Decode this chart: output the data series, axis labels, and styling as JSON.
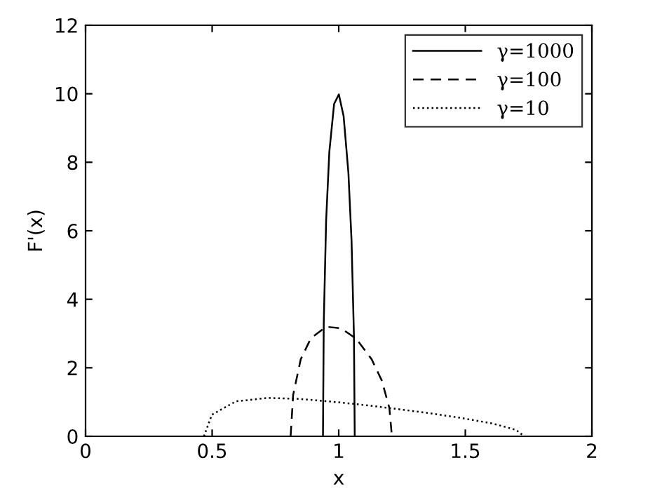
{
  "chart_data": {
    "type": "line",
    "xlabel": "x",
    "ylabel": "F'(x)",
    "xlim": [
      0,
      2
    ],
    "ylim": [
      0,
      12
    ],
    "xticks": [
      0,
      0.5,
      1,
      1.5,
      2
    ],
    "yticks": [
      0,
      2,
      4,
      6,
      8,
      10,
      12
    ],
    "grid": false,
    "legend": "top right",
    "marker": "none",
    "series": [
      {
        "name": "γ=1000",
        "color": "#000000",
        "line_style": "solid",
        "x": [
          0.9378,
          0.9409,
          0.9503,
          0.9629,
          0.9817,
          1.0005,
          1.0193,
          1.0382,
          1.0507,
          1.0601,
          1.0633
        ],
        "values": [
          0,
          3.31,
          6.31,
          8.3,
          9.7,
          9.98,
          9.35,
          7.7,
          5.7,
          2.94,
          0
        ]
      },
      {
        "name": "γ=100",
        "color": "#000000",
        "line_style": "dashed",
        "x": [
          0.81,
          0.82,
          0.85,
          0.89,
          0.95,
          1.01,
          1.07,
          1.13,
          1.17,
          1.2,
          1.21
        ],
        "values": [
          0,
          1.21,
          2.25,
          2.86,
          3.2,
          3.15,
          2.84,
          2.25,
          1.63,
          0.83,
          0
        ]
      },
      {
        "name": "γ=10",
        "color": "#000000",
        "line_style": "dotted",
        "x": [
          0.4675,
          0.4991,
          0.594,
          0.7205,
          0.847,
          0.9735,
          1.1,
          1.2265,
          1.353,
          1.4795,
          1.606,
          1.7009,
          1.7325
        ],
        "values": [
          0,
          0.63,
          1.02,
          1.12,
          1.09,
          1.01,
          0.915,
          0.8,
          0.68,
          0.54,
          0.376,
          0.185,
          0
        ]
      }
    ]
  }
}
